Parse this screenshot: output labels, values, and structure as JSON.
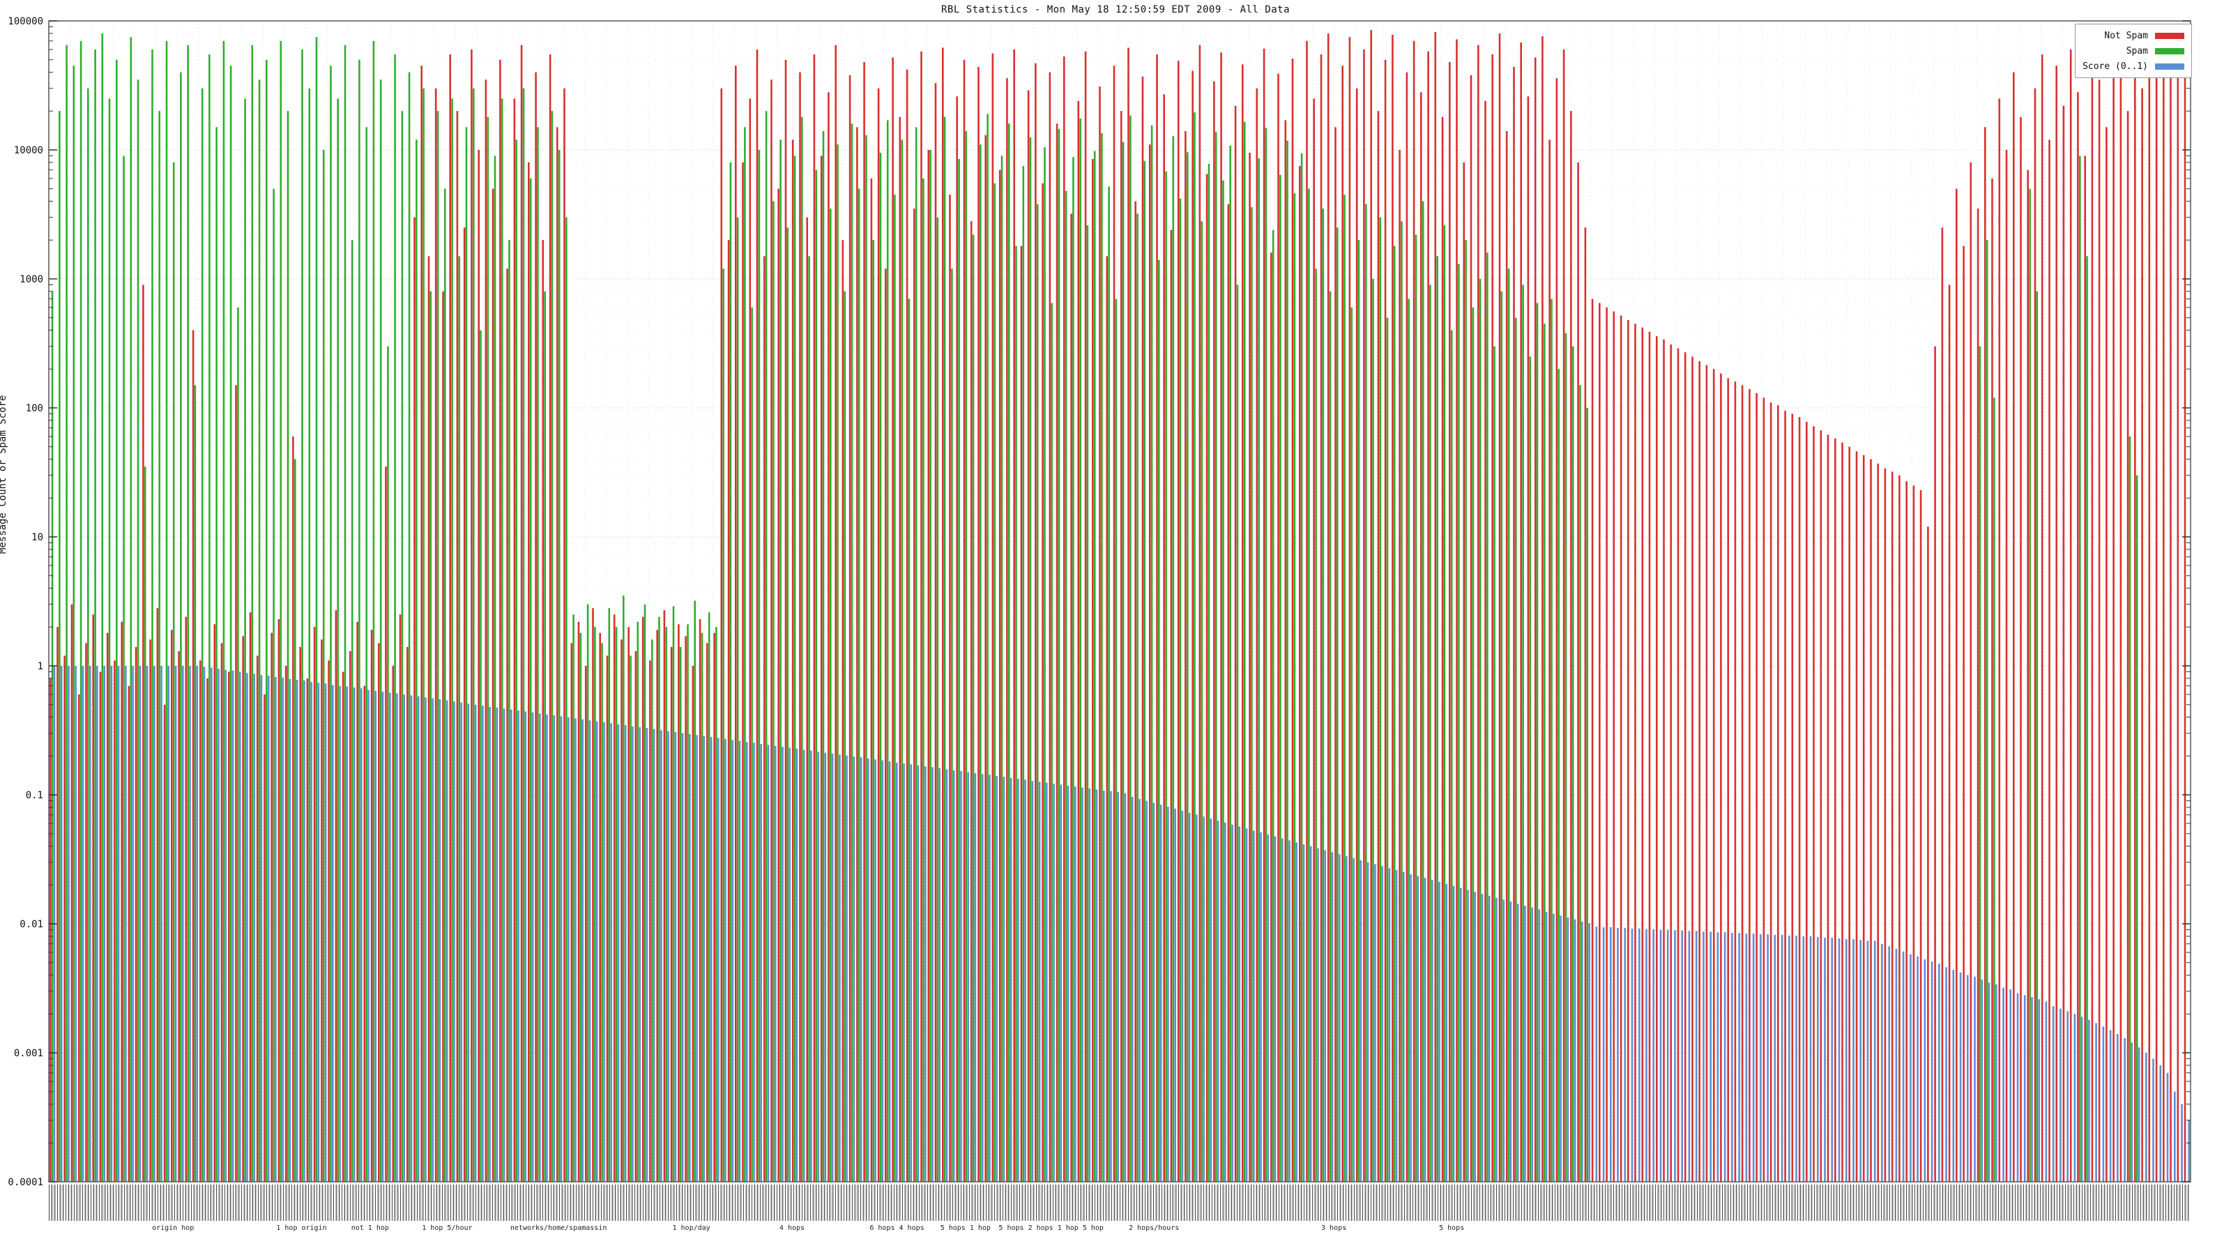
{
  "page": {
    "title": "RBL Statistics - Mon May 18 12:50:59 EDT 2009 - All Data"
  },
  "chart_data": {
    "type": "bar",
    "subtype": "log-impulses",
    "title": "RBL Statistics - Mon May 18 12:50:59 EDT 2009 - All Data",
    "xlabel": "",
    "ylabel": "Message Count or Spam Score",
    "y_scale": "log",
    "ylim": [
      0.0001,
      100000
    ],
    "y_ticks": [
      "100000",
      "10000",
      "1000",
      "100",
      "10",
      "1",
      "0.1",
      "0.01",
      "0.001",
      "0.0001"
    ],
    "grid": true,
    "legend": {
      "position": "top-right",
      "entries": [
        {
          "label": "Not Spam",
          "color": "#d93030"
        },
        {
          "label": "Spam",
          "color": "#2fae2f"
        },
        {
          "label": "Score (0..1)",
          "color": "#5b8fd4"
        }
      ]
    },
    "x_axis": {
      "labels_legible": false,
      "dense_rotated_labels": true,
      "group_labels": [
        {
          "text": "origin hop",
          "f": 0.058
        },
        {
          "text": "1 hop origin",
          "f": 0.118
        },
        {
          "text": "not 1 hop",
          "f": 0.15
        },
        {
          "text": "1 hop 5/hour",
          "f": 0.186
        },
        {
          "text": "networks/home/spamassin",
          "f": 0.238
        },
        {
          "text": "1 hop/day",
          "f": 0.3
        },
        {
          "text": "4 hops",
          "f": 0.347
        },
        {
          "text": "6 hops 4 hops",
          "f": 0.396
        },
        {
          "text": "5 hops 1 hop",
          "f": 0.428
        },
        {
          "text": "5 hops 2 hops 1 hop 5 hop",
          "f": 0.468
        },
        {
          "text": "2 hops/hours",
          "f": 0.516
        },
        {
          "text": "3 hops",
          "f": 0.6
        },
        {
          "text": "5 hops",
          "f": 0.655
        }
      ]
    },
    "series": [
      {
        "name": "Not Spam",
        "color": "#d93030",
        "values": [
          0.8,
          2,
          1.2,
          3,
          0.6,
          1.5,
          2.5,
          0.9,
          1.8,
          1.1,
          2.2,
          0.7,
          1.4,
          900,
          1.6,
          2.8,
          0.5,
          1.9,
          1.3,
          2.4,
          400,
          1.1,
          0.8,
          2.1,
          1.5,
          0.9,
          150,
          1.7,
          2.6,
          1.2,
          0.6,
          1.8,
          2.3,
          1.0,
          60,
          1.4,
          0.8,
          2.0,
          1.6,
          1.1,
          2.7,
          0.9,
          1.3,
          2.2,
          0.7,
          1.9,
          1.5,
          35,
          1.0,
          2.5,
          1.4,
          3000,
          45000,
          1500,
          30000,
          800,
          55000,
          20000,
          2500,
          60000,
          10000,
          35000,
          5000,
          50000,
          1200,
          25000,
          65000,
          8000,
          40000,
          2000,
          55000,
          15000,
          30000,
          1.5,
          2.2,
          1.0,
          2.8,
          1.8,
          1.2,
          2.5,
          1.6,
          2.0,
          1.3,
          2.4,
          1.1,
          1.9,
          2.7,
          1.4,
          2.1,
          1.7,
          1.0,
          2.3,
          1.5,
          1.8,
          30000,
          2000,
          45000,
          8000,
          25000,
          60000,
          1500,
          35000,
          5000,
          50000,
          12000,
          40000,
          3000,
          55000,
          9000,
          28000,
          65000,
          2000,
          38000,
          15000,
          48000,
          6000,
          30000,
          1200,
          52000,
          18000,
          42000,
          3500,
          58000,
          10000,
          33000,
          62000,
          4500,
          26000,
          50000,
          2800,
          44000,
          13000,
          56000,
          7000,
          36000,
          60000,
          1800,
          29000,
          47000,
          5500,
          40000,
          16000,
          53000,
          3200,
          24000,
          58000,
          8500,
          31000,
          1500,
          45000,
          20000,
          62000,
          4000,
          37000,
          11000,
          55000,
          27000,
          2400,
          49000,
          14000,
          41000,
          65000,
          6500,
          34000,
          57000,
          3800,
          22000,
          46000,
          9500,
          30000,
          61000,
          1600,
          39000,
          17000,
          51000,
          7500,
          70000,
          25000,
          55000,
          80000,
          15000,
          45000,
          75000,
          30000,
          60000,
          85000,
          20000,
          50000,
          78000,
          10000,
          40000,
          70000,
          28000,
          58000,
          82000,
          18000,
          48000,
          72000,
          8000,
          38000,
          65000,
          24000,
          55000,
          80000,
          14000,
          44000,
          68000,
          26000,
          52000,
          76000,
          12000,
          36000,
          60000,
          20000,
          8000,
          2500,
          700,
          650,
          600,
          560,
          520,
          480,
          450,
          420,
          390,
          360,
          340,
          310,
          290,
          270,
          250,
          230,
          215,
          200,
          185,
          170,
          160,
          150,
          140,
          130,
          120,
          110,
          105,
          95,
          90,
          85,
          78,
          72,
          67,
          62,
          58,
          54,
          50,
          46,
          43,
          40,
          37,
          34,
          32,
          30,
          27,
          25,
          23,
          12,
          300,
          2500,
          900,
          5000,
          1800,
          8000,
          3500,
          15000,
          6000,
          25000,
          10000,
          40000,
          18000,
          7000,
          30000,
          55000,
          12000,
          45000,
          22000,
          60000,
          28000,
          9000,
          50000,
          35000,
          15000,
          65000,
          40000,
          20000,
          70000,
          30000,
          55000,
          75000,
          45000,
          80000,
          60000,
          90000
        ]
      },
      {
        "name": "Spam",
        "color": "#2fae2f",
        "values": [
          800,
          20000,
          65000,
          45000,
          70000,
          30000,
          60000,
          80000,
          25000,
          50000,
          9000,
          75000,
          35000,
          35,
          60000,
          20000,
          70000,
          8000,
          40000,
          65000,
          150,
          30000,
          55000,
          15000,
          70000,
          45000,
          600,
          25000,
          65000,
          35000,
          50000,
          5000,
          70000,
          20000,
          40,
          60000,
          30000,
          75000,
          10000,
          45000,
          25000,
          65000,
          2000,
          50000,
          15000,
          70000,
          35000,
          300,
          55000,
          20000,
          40000,
          12000,
          30000,
          800,
          20000,
          5000,
          25000,
          1500,
          15000,
          30000,
          400,
          18000,
          9000,
          25000,
          2000,
          12000,
          30000,
          6000,
          15000,
          800,
          20000,
          10000,
          3000,
          2.5,
          1.8,
          3,
          2,
          1.5,
          2.8,
          2,
          3.5,
          1.2,
          2.2,
          3,
          1.6,
          2.4,
          2,
          2.9,
          1.4,
          2.1,
          3.2,
          1.8,
          2.6,
          2,
          1200,
          8000,
          3000,
          15000,
          600,
          10000,
          20000,
          4000,
          12000,
          2500,
          9000,
          18000,
          1500,
          7000,
          14000,
          3500,
          11000,
          800,
          16000,
          5000,
          13000,
          2000,
          9500,
          17000,
          4500,
          12000,
          700,
          15000,
          6000,
          10000,
          3000,
          18000,
          1200,
          8500,
          14000,
          2200,
          11000,
          19000,
          5500,
          9000,
          16000,
          1800,
          7500,
          12500,
          3800,
          10500,
          650,
          14500,
          4800,
          8800,
          17500,
          2600,
          9800,
          13500,
          5200,
          700,
          11500,
          18500,
          3200,
          8200,
          15500,
          1400,
          6800,
          12800,
          4200,
          9600,
          19500,
          2800,
          7800,
          13800,
          5800,
          10800,
          900,
          16500,
          3600,
          8600,
          14800,
          2400,
          6400,
          11800,
          4600,
          9400,
          5000,
          1200,
          3500,
          800,
          2500,
          4500,
          600,
          2000,
          3800,
          1000,
          3000,
          500,
          1800,
          2800,
          700,
          2200,
          4000,
          900,
          1500,
          2600,
          400,
          1300,
          2000,
          600,
          1000,
          1600,
          300,
          800,
          1200,
          500,
          900,
          250,
          650,
          450,
          700,
          200,
          380,
          300,
          150,
          100,
          0,
          0,
          0,
          0,
          0,
          0,
          0,
          0,
          0,
          0,
          0,
          0,
          0,
          0,
          0,
          0,
          0,
          0,
          0,
          0,
          0,
          0,
          0,
          0,
          0,
          0,
          0,
          0,
          0,
          0,
          0,
          0,
          0,
          0,
          0,
          0,
          0,
          0,
          0,
          0,
          0,
          0,
          0,
          0,
          0,
          0,
          0,
          0,
          0,
          0,
          0,
          0,
          0,
          0,
          300,
          2000,
          120,
          0,
          0,
          0,
          0,
          5000,
          800,
          0,
          0,
          0,
          0,
          0,
          9000,
          1500,
          0,
          0,
          0,
          0,
          0,
          60,
          30,
          0,
          0,
          0,
          0,
          0,
          0,
          0
        ]
      },
      {
        "name": "Score (0..1)",
        "color": "#5b8fd4",
        "values": [
          1,
          1,
          1,
          1,
          1,
          1,
          1,
          1,
          1,
          1,
          1,
          1,
          1,
          1,
          1,
          1,
          1,
          1,
          1,
          1,
          1,
          0.98,
          0.97,
          0.95,
          0.93,
          0.92,
          0.9,
          0.88,
          0.87,
          0.85,
          0.84,
          0.82,
          0.81,
          0.79,
          0.78,
          0.77,
          0.75,
          0.74,
          0.73,
          0.71,
          0.7,
          0.69,
          0.68,
          0.67,
          0.65,
          0.64,
          0.63,
          0.62,
          0.61,
          0.6,
          0.59,
          0.58,
          0.57,
          0.56,
          0.55,
          0.54,
          0.53,
          0.52,
          0.51,
          0.5,
          0.49,
          0.48,
          0.475,
          0.467,
          0.459,
          0.451,
          0.443,
          0.435,
          0.428,
          0.42,
          0.413,
          0.406,
          0.399,
          0.392,
          0.385,
          0.378,
          0.372,
          0.365,
          0.359,
          0.353,
          0.347,
          0.34,
          0.335,
          0.329,
          0.323,
          0.317,
          0.312,
          0.307,
          0.301,
          0.296,
          0.291,
          0.286,
          0.281,
          0.276,
          0.271,
          0.266,
          0.262,
          0.257,
          0.253,
          0.248,
          0.244,
          0.24,
          0.236,
          0.232,
          0.228,
          0.224,
          0.22,
          0.216,
          0.212,
          0.209,
          0.205,
          0.202,
          0.198,
          0.195,
          0.191,
          0.188,
          0.185,
          0.182,
          0.178,
          0.175,
          0.172,
          0.169,
          0.166,
          0.164,
          0.161,
          0.158,
          0.155,
          0.153,
          0.15,
          0.147,
          0.145,
          0.143,
          0.14,
          0.138,
          0.135,
          0.133,
          0.131,
          0.128,
          0.126,
          0.124,
          0.122,
          0.12,
          0.118,
          0.116,
          0.114,
          0.112,
          0.11,
          0.108,
          0.107,
          0.105,
          0.103,
          0.0965,
          0.0932,
          0.0899,
          0.0868,
          0.0838,
          0.0809,
          0.0781,
          0.0754,
          0.0727,
          0.0702,
          0.0678,
          0.0654,
          0.0631,
          0.0609,
          0.0588,
          0.0568,
          0.0548,
          0.0529,
          0.0511,
          0.0493,
          0.0476,
          0.0459,
          0.0443,
          0.0428,
          0.0413,
          0.0399,
          0.0385,
          0.0372,
          0.0359,
          0.0346,
          0.0334,
          0.0323,
          0.0311,
          0.0301,
          0.029,
          0.028,
          0.027,
          0.0261,
          0.0252,
          0.0243,
          0.0235,
          0.0227,
          0.0219,
          0.0211,
          0.0204,
          0.0197,
          0.019,
          0.0183,
          0.0177,
          0.0171,
          0.0165,
          0.0159,
          0.0154,
          0.0149,
          0.0143,
          0.0138,
          0.0134,
          0.0129,
          0.0124,
          0.012,
          0.0116,
          0.0112,
          0.0108,
          0.0104,
          0.0101,
          0.0095,
          0.0094,
          0.0094,
          0.0093,
          0.0093,
          0.0092,
          0.0092,
          0.0091,
          0.0091,
          0.009,
          0.009,
          0.0089,
          0.0089,
          0.0088,
          0.0088,
          0.0087,
          0.0087,
          0.0086,
          0.0086,
          0.0085,
          0.0085,
          0.0084,
          0.0084,
          0.0083,
          0.0083,
          0.0082,
          0.0082,
          0.0081,
          0.0081,
          0.008,
          0.008,
          0.0079,
          0.0078,
          0.0078,
          0.0077,
          0.0076,
          0.0076,
          0.0075,
          0.0074,
          0.0074,
          0.007,
          0.0067,
          0.0064,
          0.0061,
          0.0058,
          0.0056,
          0.0053,
          0.0051,
          0.0049,
          0.0046,
          0.0044,
          0.0042,
          0.004,
          0.0039,
          0.0037,
          0.0035,
          0.0034,
          0.0032,
          0.0031,
          0.0029,
          0.0028,
          0.0027,
          0.0026,
          0.0025,
          0.0023,
          0.0022,
          0.0021,
          0.002,
          0.0019,
          0.0018,
          0.0017,
          0.0016,
          0.0015,
          0.0014,
          0.0013,
          0.0012,
          0.0011,
          0.001,
          0.0009,
          0.0008,
          0.0007,
          0.0005,
          0.0004,
          0.0003
        ]
      }
    ]
  }
}
